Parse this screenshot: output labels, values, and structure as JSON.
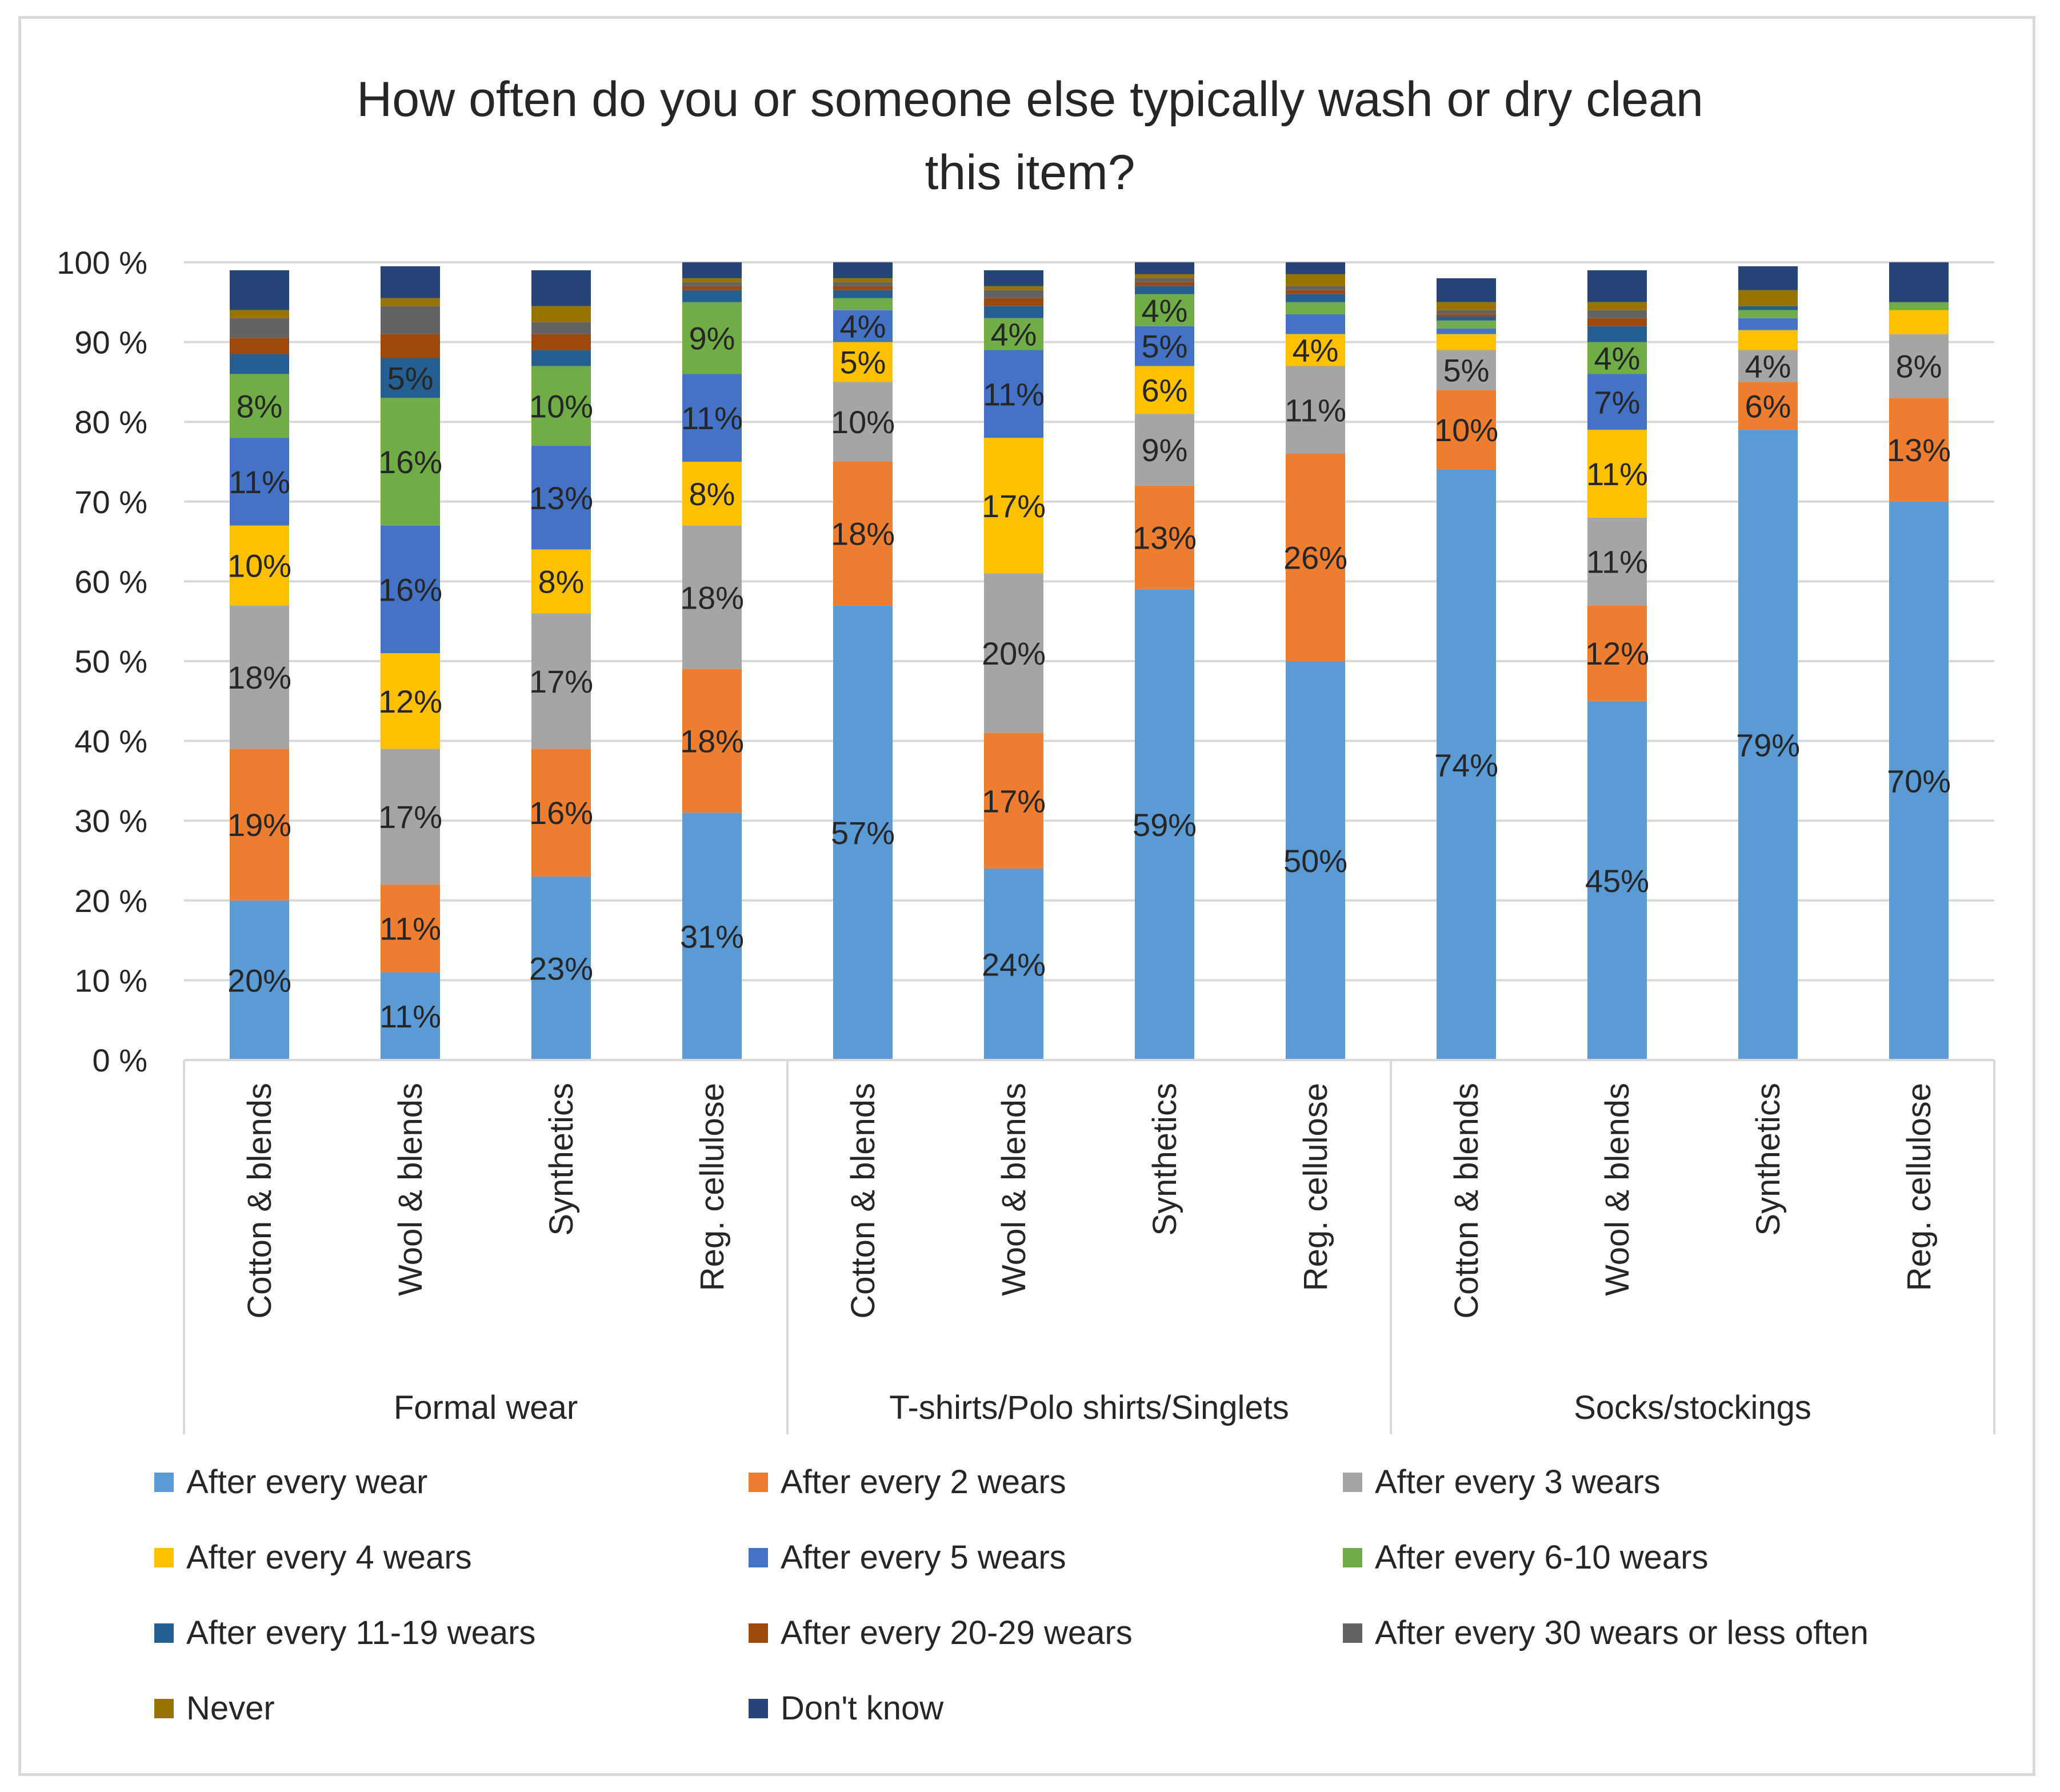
{
  "chart_data": {
    "type": "bar",
    "stacked": true,
    "percent_stacked": true,
    "title": "How often do you or someone else typically wash or dry clean this item?",
    "title_lines": [
      "How often do you or someone else typically wash or dry clean",
      "this item?"
    ],
    "ylim": [
      0,
      100
    ],
    "y_ticks": [
      "0 %",
      "10 %",
      "20 %",
      "30 %",
      "40 %",
      "50 %",
      "60 %",
      "70 %",
      "80 %",
      "90 %",
      "100 %"
    ],
    "legend_position": "bottom",
    "groups": [
      {
        "name": "Formal wear",
        "categories": [
          "Cotton & blends",
          "Wool & blends",
          "Synthetics",
          "Reg. cellulose"
        ]
      },
      {
        "name": "T-shirts/Polo shirts/Singlets",
        "categories": [
          "Cotton & blends",
          "Wool & blends",
          "Synthetics",
          "Reg. cellulose"
        ]
      },
      {
        "name": "Socks/stockings",
        "categories": [
          "Cotton & blends",
          "Wool & blends",
          "Synthetics",
          "Reg. cellulose"
        ]
      }
    ],
    "categories": [
      "Cotton & blends",
      "Wool & blends",
      "Synthetics",
      "Reg. cellulose",
      "Cotton & blends",
      "Wool & blends",
      "Synthetics",
      "Reg. cellulose",
      "Cotton & blends",
      "Wool & blends",
      "Synthetics",
      "Reg. cellulose"
    ],
    "series": [
      {
        "name": "After every wear",
        "color": "#5b9bd5",
        "values": [
          20,
          11,
          23,
          31,
          57,
          24,
          59,
          50,
          74,
          45,
          79,
          70
        ],
        "labels": [
          "20%",
          "11%",
          "23%",
          "31%",
          "57%",
          "24%",
          "59%",
          "50%",
          "74%",
          "45%",
          "79%",
          "70%"
        ]
      },
      {
        "name": "After every 2 wears",
        "color": "#ed7d31",
        "values": [
          19,
          11,
          16,
          18,
          18,
          17,
          13,
          26,
          10,
          12,
          6,
          13
        ],
        "labels": [
          "19%",
          "11%",
          "16%",
          "18%",
          "18%",
          "17%",
          "13%",
          "26%",
          "10%",
          "12%",
          "6%",
          "13%"
        ]
      },
      {
        "name": "After every 3 wears",
        "color": "#a5a5a5",
        "values": [
          18,
          17,
          17,
          18,
          10,
          20,
          9,
          11,
          5,
          11,
          4,
          8
        ],
        "labels": [
          "18%",
          "17%",
          "17%",
          "18%",
          "10%",
          "20%",
          "9%",
          "11%",
          "5%",
          "11%",
          "4%",
          "8%"
        ]
      },
      {
        "name": "After every 4 wears",
        "color": "#ffc000",
        "values": [
          10,
          12,
          8,
          8,
          5,
          17,
          6,
          4,
          2,
          11,
          2.5,
          3
        ],
        "labels": [
          "10%",
          "12%",
          "8%",
          "8%",
          "5%",
          "17%",
          "6%",
          "4%",
          "",
          "11%",
          "",
          ""
        ]
      },
      {
        "name": "After every 5 wears",
        "color": "#4472c4",
        "values": [
          11,
          16,
          13,
          11,
          4,
          11,
          5,
          2.5,
          0.7,
          7,
          1.5,
          0
        ],
        "labels": [
          "11%",
          "16%",
          "13%",
          "11%",
          "4%",
          "11%",
          "5%",
          "",
          "",
          "7%",
          "",
          ""
        ]
      },
      {
        "name": "After every 6-10 wears",
        "color": "#70ad47",
        "values": [
          8,
          16,
          10,
          9,
          1.5,
          4,
          4,
          1.5,
          1,
          4,
          1,
          1
        ],
        "labels": [
          "8%",
          "16%",
          "10%",
          "9%",
          "",
          "4%",
          "4%",
          "",
          "",
          "4%",
          "",
          ""
        ]
      },
      {
        "name": "After every 11-19 wears",
        "color": "#255e91",
        "values": [
          2.5,
          5,
          2,
          1.5,
          1,
          1.5,
          1,
          1,
          0.5,
          2,
          0.5,
          0
        ],
        "labels": [
          "",
          "5%",
          "",
          "",
          "",
          "",
          "",
          "",
          "",
          "",
          "",
          ""
        ]
      },
      {
        "name": "After every 20-29 wears",
        "color": "#9e480e",
        "values": [
          2,
          3,
          2,
          0.5,
          0.5,
          1,
          0.5,
          0.5,
          0.3,
          1,
          0,
          0
        ],
        "labels": [
          "",
          "",
          "",
          "",
          "",
          "",
          "",
          "",
          "",
          "",
          "",
          ""
        ]
      },
      {
        "name": "After every 30 wears or less often",
        "color": "#636363",
        "values": [
          2.5,
          3.5,
          1.5,
          0.5,
          0.5,
          1,
          0.5,
          0.5,
          0.5,
          1,
          0,
          0
        ],
        "labels": [
          "",
          "",
          "",
          "",
          "",
          "",
          "",
          "",
          "",
          "",
          "",
          ""
        ]
      },
      {
        "name": "Never",
        "color": "#997300",
        "values": [
          1,
          1,
          2,
          0.5,
          0.5,
          0.5,
          0.5,
          1.5,
          1,
          1,
          2,
          0
        ],
        "labels": [
          "",
          "",
          "",
          "",
          "",
          "",
          "",
          "",
          "",
          "",
          "",
          ""
        ]
      },
      {
        "name": "Don't know",
        "color": "#264478",
        "values": [
          5.0,
          4.0,
          4.5,
          2.5,
          3.5,
          2.0,
          3.5,
          3.0,
          3.0,
          4.0,
          3.0,
          5.0
        ],
        "labels": [
          "",
          "",
          "",
          "",
          "",
          "",
          "",
          "",
          "",
          "",
          "",
          ""
        ]
      }
    ]
  }
}
